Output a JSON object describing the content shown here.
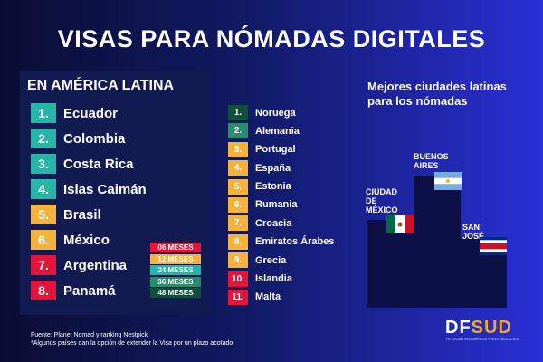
{
  "title": "VISAS PARA NÓMADAS DIGITALES",
  "latam": {
    "heading": "EN AMÉRICA LATINA",
    "items": [
      {
        "num": "1.",
        "name": "Ecuador",
        "color": "#27b5a8"
      },
      {
        "num": "2.",
        "name": "Colombia",
        "color": "#27b5a8"
      },
      {
        "num": "3.",
        "name": "Costa Rica",
        "color": "#27b5a8"
      },
      {
        "num": "4.",
        "name": "Islas Caimán",
        "color": "#27b5a8"
      },
      {
        "num": "5.",
        "name": "Brasil",
        "color": "#f5b33d"
      },
      {
        "num": "6.",
        "name": "México",
        "color": "#f5b33d"
      },
      {
        "num": "7.",
        "name": "Argentina",
        "color": "#e3153a"
      },
      {
        "num": "8.",
        "name": "Panamá",
        "color": "#e3153a"
      }
    ]
  },
  "legend": [
    {
      "label": "06 MESES",
      "color": "#e3153a"
    },
    {
      "label": "12 MESES",
      "color": "#f5b33d"
    },
    {
      "label": "24 MESES",
      "color": "#27b5a8"
    },
    {
      "label": "36 MESES",
      "color": "#2d8a6e"
    },
    {
      "label": "48 MESES",
      "color": "#124e3c"
    }
  ],
  "world": {
    "items": [
      {
        "num": "1.",
        "name": "Noruega",
        "color": "#124e3c"
      },
      {
        "num": "2.",
        "name": "Alemania",
        "color": "#2d8a6e"
      },
      {
        "num": "3.",
        "name": "Portugal",
        "color": "#f5b33d"
      },
      {
        "num": "4.",
        "name": "España",
        "color": "#f5b33d"
      },
      {
        "num": "5.",
        "name": "Estonia",
        "color": "#f5b33d"
      },
      {
        "num": "6.",
        "name": "Rumania",
        "color": "#f5b33d"
      },
      {
        "num": "7.",
        "name": "Croacia",
        "color": "#f5b33d"
      },
      {
        "num": "8.",
        "name": "Emiratos Árabes",
        "color": "#f5b33d"
      },
      {
        "num": "9.",
        "name": "Grecia",
        "color": "#f5b33d"
      },
      {
        "num": "10.",
        "name": "Islandia",
        "color": "#e3153a"
      },
      {
        "num": "11.",
        "name": "Malta",
        "color": "#e3153a"
      }
    ]
  },
  "cities": {
    "title": "Mejores ciudades latinas para los nómadas",
    "mexico_line1": "CIUDAD",
    "mexico_line2": "DE",
    "mexico_line3": "MÉXICO",
    "bsas_line1": "BUENOS",
    "bsas_line2": "AIRES",
    "sanjose_line1": "SAN",
    "sanjose_line2": "JOSÉ"
  },
  "footnote": {
    "line1": "Fuente: Planet Nomad y ranking Nestpick",
    "line2": "*Algunos países dan la opción de extender la Visa por un plazo acotado"
  },
  "logo": {
    "text_df": "DF",
    "text_sud": "SUD",
    "tagline": "TU LUGAR EN AMÉRICA Y SUS NEGOCIOS",
    "color_df": "#ffffff",
    "color_sud": "#f5a623"
  }
}
